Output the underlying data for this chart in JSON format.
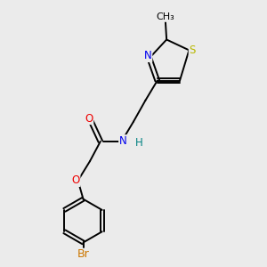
{
  "background_color": "#ebebeb",
  "bond_color": "#000000",
  "atom_colors": {
    "S": "#b8b800",
    "N_blue": "#0000ee",
    "O": "#ee0000",
    "Br": "#cc7700",
    "N_teal": "#008080",
    "C": "#000000"
  },
  "figsize": [
    3.0,
    3.0
  ],
  "dpi": 100,
  "xlim": [
    0,
    10
  ],
  "ylim": [
    0,
    10
  ],
  "lw": 1.4,
  "fontsize": 8.5,
  "methyl_text": "CH₃"
}
